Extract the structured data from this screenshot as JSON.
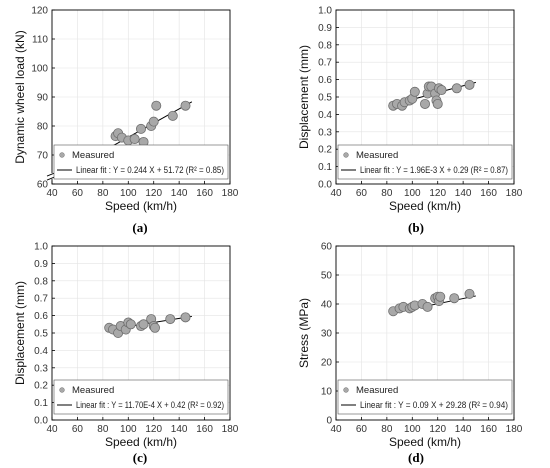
{
  "chart_data": [
    {
      "type": "scatter",
      "panel_label": "(a)",
      "xlabel": "Speed (km/h)",
      "ylabel": "Dynamic wheel load (kN)",
      "xlim": [
        40,
        180
      ],
      "ylim": [
        60,
        120
      ],
      "xticks": [
        "40",
        "60",
        "80",
        "100",
        "120",
        "140",
        "160",
        "180"
      ],
      "yticks": [
        "60",
        "70",
        "80",
        "90",
        "100",
        "110",
        "120"
      ],
      "axis_break": true,
      "legend": {
        "position": "bottom",
        "measured": "Measured",
        "fit": "Linear fit : Y = 0.244 X + 51.72 (R² = 0.85)"
      },
      "points": [
        [
          85,
          69.5
        ],
        [
          90,
          76.5
        ],
        [
          92,
          77.5
        ],
        [
          95,
          76
        ],
        [
          100,
          75
        ],
        [
          105,
          75.5
        ],
        [
          110,
          79
        ],
        [
          112,
          74.5
        ],
        [
          118,
          80
        ],
        [
          120,
          81.5
        ],
        [
          122,
          87
        ],
        [
          135,
          83.5
        ],
        [
          145,
          87
        ]
      ],
      "fit": {
        "slope": 0.244,
        "intercept": 51.72,
        "x": [
          85,
          150
        ]
      }
    },
    {
      "type": "scatter",
      "panel_label": "(b)",
      "xlabel": "Speed (km/h)",
      "ylabel": "Displacement (mm)",
      "xlim": [
        40,
        180
      ],
      "ylim": [
        0,
        1.0
      ],
      "xticks": [
        "40",
        "60",
        "80",
        "100",
        "120",
        "140",
        "160",
        "180"
      ],
      "yticks": [
        "0.0",
        "0.1",
        "0.2",
        "0.3",
        "0.4",
        "0.5",
        "0.6",
        "0.7",
        "0.8",
        "0.9",
        "1.0"
      ],
      "axis_break": false,
      "legend": {
        "position": "bottom",
        "measured": "Measured",
        "fit": "Linear fit : Y = 1.96E-3 X + 0.29 (R² = 0.87)"
      },
      "points": [
        [
          85,
          0.45
        ],
        [
          88,
          0.46
        ],
        [
          92,
          0.45
        ],
        [
          94,
          0.47
        ],
        [
          98,
          0.48
        ],
        [
          100,
          0.49
        ],
        [
          102,
          0.53
        ],
        [
          110,
          0.46
        ],
        [
          112,
          0.52
        ],
        [
          113,
          0.56
        ],
        [
          115,
          0.56
        ],
        [
          118,
          0.52
        ],
        [
          119,
          0.48
        ],
        [
          120,
          0.46
        ],
        [
          121,
          0.55
        ],
        [
          123,
          0.54
        ],
        [
          135,
          0.55
        ],
        [
          145,
          0.57
        ]
      ],
      "fit": {
        "slope": 0.00196,
        "intercept": 0.29,
        "x": [
          83,
          150
        ]
      }
    },
    {
      "type": "scatter",
      "panel_label": "(c)",
      "xlabel": "Speed (km/h)",
      "ylabel": "Displacement (mm)",
      "xlim": [
        40,
        180
      ],
      "ylim": [
        0,
        1.0
      ],
      "xticks": [
        "40",
        "60",
        "80",
        "100",
        "120",
        "140",
        "160",
        "180"
      ],
      "yticks": [
        "0.0",
        "0.1",
        "0.2",
        "0.3",
        "0.4",
        "0.5",
        "0.6",
        "0.7",
        "0.8",
        "0.9",
        "1.0"
      ],
      "axis_break": false,
      "legend": {
        "position": "bottom",
        "measured": "Measured",
        "fit": "Linear fit : Y = 11.70E-4 X + 0.42 (R² = 0.92)"
      },
      "points": [
        [
          85,
          0.53
        ],
        [
          88,
          0.52
        ],
        [
          92,
          0.5
        ],
        [
          94,
          0.54
        ],
        [
          98,
          0.52
        ],
        [
          100,
          0.56
        ],
        [
          102,
          0.55
        ],
        [
          110,
          0.54
        ],
        [
          112,
          0.55
        ],
        [
          118,
          0.58
        ],
        [
          120,
          0.54
        ],
        [
          121,
          0.53
        ],
        [
          133,
          0.58
        ],
        [
          145,
          0.59
        ]
      ],
      "fit": {
        "slope": 0.00117,
        "intercept": 0.42,
        "x": [
          85,
          150
        ]
      }
    },
    {
      "type": "scatter",
      "panel_label": "(d)",
      "xlabel": "Speed (km/h)",
      "ylabel": "Stress (MPa)",
      "xlim": [
        40,
        180
      ],
      "ylim": [
        0,
        60
      ],
      "xticks": [
        "40",
        "60",
        "80",
        "100",
        "120",
        "140",
        "160",
        "180"
      ],
      "yticks": [
        "0",
        "10",
        "20",
        "30",
        "40",
        "50",
        "60"
      ],
      "axis_break": false,
      "legend": {
        "position": "bottom",
        "measured": "Measured",
        "fit": "Linear fit : Y = 0.09 X + 29.28 (R² = 0.94)"
      },
      "points": [
        [
          85,
          37.5
        ],
        [
          90,
          38.5
        ],
        [
          93,
          39
        ],
        [
          98,
          38.5
        ],
        [
          100,
          39
        ],
        [
          102,
          39.5
        ],
        [
          108,
          40
        ],
        [
          112,
          39
        ],
        [
          118,
          42
        ],
        [
          120,
          42.5
        ],
        [
          121,
          41
        ],
        [
          122,
          42.5
        ],
        [
          133,
          42
        ],
        [
          145,
          43.5
        ]
      ],
      "fit": {
        "slope": 0.09,
        "intercept": 29.28,
        "x": [
          83,
          150
        ]
      }
    }
  ],
  "colors": {
    "marker_fill": "#a8a8a8",
    "marker_edge": "#6e6e6e",
    "fit_line": "#000000",
    "grid": "#e3e3e3"
  }
}
